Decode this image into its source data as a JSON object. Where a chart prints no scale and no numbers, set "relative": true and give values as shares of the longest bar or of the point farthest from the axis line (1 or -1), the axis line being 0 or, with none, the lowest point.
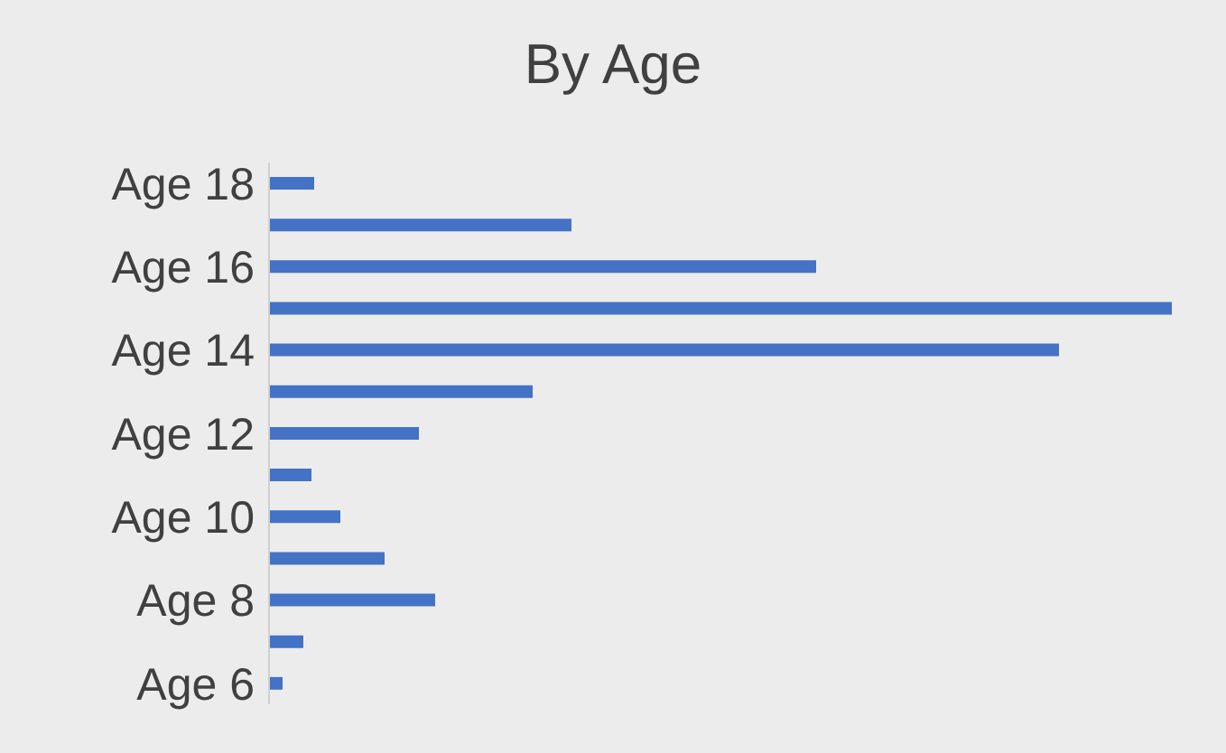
{
  "chart_data": {
    "type": "bar",
    "orientation": "horizontal",
    "relative": true,
    "title": "By Age",
    "categories": [
      "Age 18",
      null,
      "Age 16",
      null,
      "Age 14",
      null,
      "Age 12",
      null,
      "Age 10",
      null,
      "Age 8",
      null,
      "Age 6"
    ],
    "values": [
      0.05,
      0.335,
      0.606,
      1,
      0.875,
      0.292,
      0.166,
      0.047,
      0.079,
      0.128,
      0.184,
      0.038,
      0.015
    ],
    "color": "#4472c4"
  }
}
